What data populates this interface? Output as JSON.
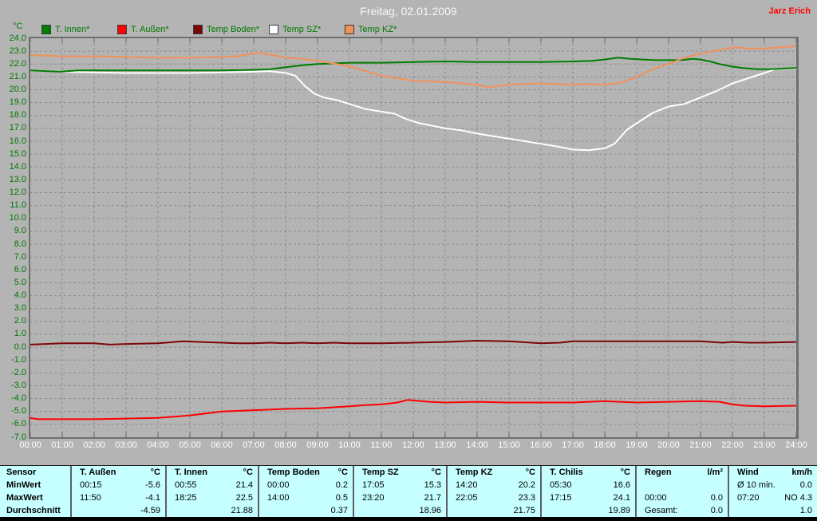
{
  "header": {
    "user": "Jarz Erich"
  },
  "chart_data": {
    "type": "line",
    "title": "Freitag, 02.01.2009",
    "xlabel": "",
    "ylabel": "°C",
    "ylim": [
      -7,
      24
    ],
    "x_unit": "hours",
    "xlim": [
      0,
      24
    ],
    "grid": true,
    "legend_position": "top",
    "axis_colors": {
      "x_labels": "#ffffff",
      "y_labels": "#007800"
    },
    "x_tick_labels": [
      "00:00",
      "01:00",
      "02:00",
      "03:00",
      "04:00",
      "05:00",
      "06:00",
      "07:00",
      "08:00",
      "09:00",
      "10:00",
      "11:00",
      "12:00",
      "13:00",
      "14:00",
      "15:00",
      "16:00",
      "17:00",
      "18:00",
      "19:00",
      "20:00",
      "21:00",
      "22:00",
      "23:00",
      "24:00"
    ],
    "y_tick_labels": [
      "24.0",
      "23.0",
      "22.0",
      "21.0",
      "20.0",
      "19.0",
      "18.0",
      "17.0",
      "16.0",
      "15.0",
      "14.0",
      "13.0",
      "12.0",
      "11.0",
      "10.0",
      "9.0",
      "8.0",
      "7.0",
      "6.0",
      "5.0",
      "4.0",
      "3.0",
      "2.0",
      "1.0",
      "0.0",
      "-1.0",
      "-2.0",
      "-3.0",
      "-4.0",
      "-5.0",
      "-6.0",
      "-7.0"
    ],
    "series": [
      {
        "name": "T. Innen*",
        "color": "#007d00",
        "x": [
          0,
          0.5,
          0.92,
          1.5,
          2,
          3,
          4,
          5,
          6,
          7,
          7.5,
          8,
          8.5,
          9,
          9.5,
          10,
          11,
          12,
          13,
          14,
          15,
          16,
          17,
          17.6,
          18,
          18.42,
          18.8,
          19.2,
          19.6,
          20,
          20.4,
          20.75,
          21,
          21.3,
          21.6,
          22,
          22.3,
          22.8,
          23.2,
          23.6,
          24
        ],
        "values": [
          21.5,
          21.45,
          21.4,
          21.5,
          21.5,
          21.5,
          21.5,
          21.5,
          21.5,
          21.55,
          21.6,
          21.75,
          21.9,
          22.0,
          22.05,
          22.1,
          22.1,
          22.15,
          22.2,
          22.15,
          22.15,
          22.15,
          22.2,
          22.25,
          22.35,
          22.5,
          22.4,
          22.35,
          22.3,
          22.3,
          22.3,
          22.4,
          22.35,
          22.2,
          22.0,
          21.8,
          21.7,
          21.6,
          21.6,
          21.65,
          21.7
        ]
      },
      {
        "name": "T. Außen*",
        "color": "#ff0000",
        "x": [
          0,
          0.25,
          1,
          2,
          3,
          4,
          4.5,
          5,
          5.5,
          6,
          7,
          8,
          9,
          10,
          10.5,
          11,
          11.5,
          11.83,
          12.5,
          13,
          14,
          15,
          16,
          17,
          18,
          19,
          20,
          21,
          21.6,
          22,
          22.4,
          23,
          24
        ],
        "values": [
          -5.5,
          -5.6,
          -5.6,
          -5.6,
          -5.55,
          -5.5,
          -5.4,
          -5.3,
          -5.15,
          -5.0,
          -4.9,
          -4.8,
          -4.75,
          -4.6,
          -4.5,
          -4.45,
          -4.3,
          -4.1,
          -4.25,
          -4.3,
          -4.25,
          -4.3,
          -4.3,
          -4.3,
          -4.2,
          -4.3,
          -4.25,
          -4.2,
          -4.25,
          -4.45,
          -4.55,
          -4.6,
          -4.55
        ]
      },
      {
        "name": "Temp Boden*",
        "color": "#7c0606",
        "x": [
          0,
          0.5,
          1,
          2,
          2.5,
          3,
          4,
          4.8,
          5.3,
          6,
          6.5,
          7,
          7.5,
          8,
          8.5,
          9,
          9.5,
          10,
          11,
          12,
          13,
          14,
          15,
          16,
          16.6,
          17,
          18,
          19,
          20,
          21,
          21.7,
          22,
          22.5,
          23,
          24
        ],
        "values": [
          0.2,
          0.25,
          0.3,
          0.3,
          0.2,
          0.25,
          0.3,
          0.45,
          0.4,
          0.35,
          0.3,
          0.3,
          0.35,
          0.3,
          0.35,
          0.3,
          0.35,
          0.3,
          0.3,
          0.35,
          0.4,
          0.5,
          0.45,
          0.3,
          0.35,
          0.45,
          0.45,
          0.45,
          0.45,
          0.45,
          0.35,
          0.4,
          0.35,
          0.35,
          0.4
        ]
      },
      {
        "name": "Temp SZ*",
        "color": "#ffffff",
        "x": [
          0,
          1,
          2,
          3,
          4,
          5,
          6,
          7,
          7.5,
          8,
          8.3,
          8.6,
          8.9,
          9.2,
          9.6,
          10,
          10.5,
          11,
          11.4,
          11.8,
          12.2,
          12.6,
          13,
          13.5,
          14,
          14.5,
          15,
          15.5,
          16,
          16.5,
          17,
          17.5,
          18,
          18.3,
          18.7,
          19,
          19.5,
          20,
          20.5,
          21,
          21.5,
          22,
          22.5,
          23,
          23.35,
          24
        ],
        "values": [
          21.5,
          21.4,
          21.35,
          21.3,
          21.3,
          21.3,
          21.35,
          21.4,
          21.45,
          21.3,
          21.1,
          20.3,
          19.7,
          19.4,
          19.2,
          18.9,
          18.5,
          18.3,
          18.15,
          17.7,
          17.4,
          17.2,
          17.0,
          16.85,
          16.6,
          16.4,
          16.2,
          16.0,
          15.8,
          15.6,
          15.35,
          15.3,
          15.45,
          15.8,
          16.9,
          17.4,
          18.2,
          18.7,
          18.9,
          19.4,
          19.9,
          20.5,
          20.9,
          21.3,
          21.6,
          21.65
        ]
      },
      {
        "name": "Temp KZ*",
        "color": "#f2915a",
        "x": [
          0,
          0.5,
          1,
          2,
          3,
          4,
          5,
          6,
          6.5,
          6.9,
          7.2,
          7.6,
          8,
          8.5,
          9,
          9.5,
          10,
          10.5,
          11,
          11.5,
          12,
          12.5,
          13,
          13.5,
          14,
          14.33,
          15,
          15.5,
          16,
          16.5,
          17,
          17.5,
          18,
          18.5,
          19,
          19.5,
          20,
          20.4,
          20.8,
          21.2,
          21.6,
          22.08,
          22.5,
          23,
          23.5,
          24
        ],
        "values": [
          22.7,
          22.65,
          22.6,
          22.6,
          22.55,
          22.5,
          22.5,
          22.55,
          22.6,
          22.8,
          22.85,
          22.7,
          22.5,
          22.4,
          22.25,
          22.05,
          21.8,
          21.45,
          21.1,
          20.9,
          20.7,
          20.65,
          20.6,
          20.5,
          20.4,
          20.2,
          20.4,
          20.45,
          20.5,
          20.45,
          20.4,
          20.45,
          20.4,
          20.55,
          21.0,
          21.6,
          22.0,
          22.4,
          22.7,
          22.9,
          23.1,
          23.3,
          23.2,
          23.2,
          23.3,
          23.4
        ]
      }
    ]
  },
  "table": {
    "row_labels": [
      "Sensor",
      "MinWert",
      "MaxWert",
      "Durchschnitt"
    ],
    "columns": [
      {
        "name": "T. Außen",
        "unit": "°C",
        "min": [
          "00:15",
          "-5.6"
        ],
        "max": [
          "11:50",
          "-4.1"
        ],
        "avg": [
          "",
          "-4.59"
        ]
      },
      {
        "name": "T. Innen",
        "unit": "°C",
        "min": [
          "00:55",
          "21.4"
        ],
        "max": [
          "18:25",
          "22.5"
        ],
        "avg": [
          "",
          "21.88"
        ]
      },
      {
        "name": "Temp Boden",
        "unit": "°C",
        "min": [
          "00:00",
          "0.2"
        ],
        "max": [
          "14:00",
          "0.5"
        ],
        "avg": [
          "",
          "0.37"
        ]
      },
      {
        "name": "Temp SZ",
        "unit": "°C",
        "min": [
          "17:05",
          "15.3"
        ],
        "max": [
          "23:20",
          "21.7"
        ],
        "avg": [
          "",
          "18.96"
        ]
      },
      {
        "name": "Temp KZ",
        "unit": "°C",
        "min": [
          "14:20",
          "20.2"
        ],
        "max": [
          "22:05",
          "23.3"
        ],
        "avg": [
          "",
          "21.75"
        ]
      },
      {
        "name": "T. Chilis",
        "unit": "°C",
        "min": [
          "05:30",
          "16.6"
        ],
        "max": [
          "17:15",
          "24.1"
        ],
        "avg": [
          "",
          "19.89"
        ]
      },
      {
        "name": "Regen",
        "unit": "l/m²",
        "min": [
          "",
          ""
        ],
        "max": [
          "00:00",
          "0.0"
        ],
        "avg": [
          "Gesamt:",
          "0.0"
        ]
      },
      {
        "name": "Wind",
        "unit": "km/h",
        "min": [
          "Ø 10 min.",
          "0.0"
        ],
        "max": [
          "07:20",
          "NO 4.3"
        ],
        "avg": [
          "",
          "1.0"
        ]
      }
    ]
  }
}
